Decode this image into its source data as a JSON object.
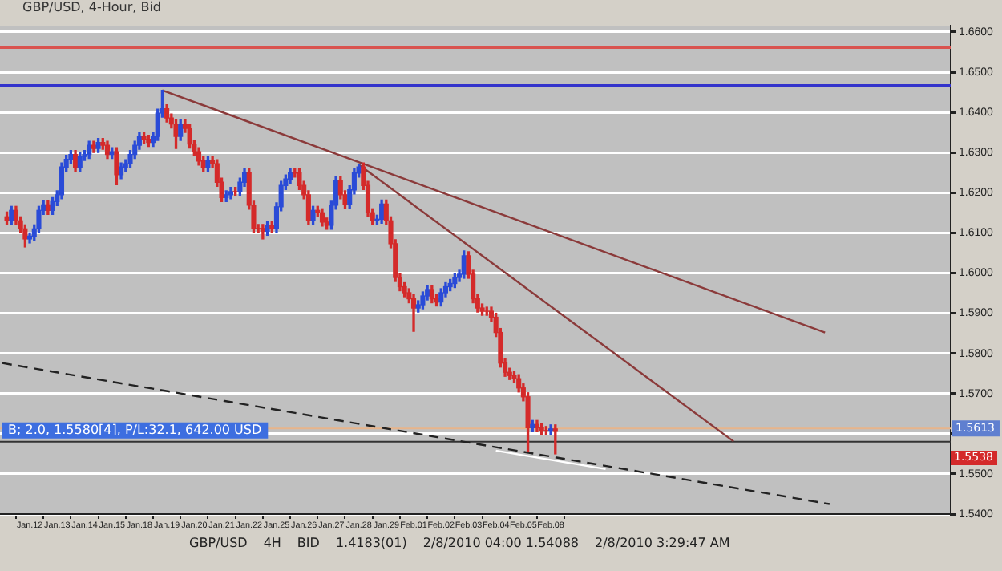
{
  "chart_data": {
    "type": "candlestick",
    "title": "GBP/USD, 4-Hour, Bid",
    "categories": [
      null,
      null,
      null,
      null,
      null,
      null,
      "Jan.12",
      null,
      null,
      null,
      null,
      null,
      "Jan.13",
      null,
      null,
      null,
      null,
      null,
      "Jan.14",
      null,
      null,
      null,
      null,
      null,
      "Jan.15",
      null,
      null,
      null,
      null,
      null,
      "Jan.18",
      null,
      null,
      null,
      null,
      null,
      "Jan.19",
      null,
      null,
      null,
      null,
      null,
      "Jan.20",
      null,
      null,
      null,
      null,
      null,
      "Jan.21",
      null,
      null,
      null,
      null,
      null,
      "Jan.22",
      null,
      null,
      null,
      null,
      null,
      "Jan.25",
      null,
      null,
      null,
      null,
      null,
      "Jan.26",
      null,
      null,
      null,
      null,
      null,
      "Jan.27",
      null,
      null,
      null,
      null,
      null,
      "Jan.28",
      null,
      null,
      null,
      null,
      null,
      "Jan.29",
      null,
      null,
      null,
      null,
      null,
      "Feb.01",
      null,
      null,
      null,
      null,
      null,
      "Feb.02",
      null,
      null,
      null,
      null,
      null,
      "Feb.03",
      null,
      null,
      null,
      null,
      null,
      "Feb.04",
      null,
      null,
      null,
      null,
      null,
      "Feb.05",
      null,
      null,
      null,
      null,
      null,
      "Feb.08",
      null,
      null,
      null,
      null,
      null,
      null,
      null,
      null,
      null,
      null,
      null,
      null,
      null,
      null,
      null,
      null,
      null,
      null,
      null,
      null,
      null,
      null,
      null,
      null,
      null,
      null,
      null,
      null,
      null,
      null,
      null,
      null,
      null,
      null,
      null,
      null,
      null,
      null,
      null,
      null,
      null,
      null,
      null,
      null,
      null,
      null,
      null,
      null,
      null,
      null,
      null,
      null,
      null,
      null,
      null,
      null,
      null,
      null,
      null,
      null,
      null,
      null,
      null,
      null,
      null,
      null,
      null,
      null,
      null,
      null,
      null,
      null,
      null,
      null,
      null,
      null,
      null,
      null,
      null,
      null,
      null,
      null,
      null,
      null,
      null,
      null,
      null
    ],
    "ohlc": [
      null,
      [
        1.614,
        1.6152,
        1.612,
        1.613
      ],
      [
        1.613,
        1.6166,
        1.612,
        1.6156
      ],
      [
        1.6156,
        1.6166,
        1.612,
        1.613
      ],
      [
        1.613,
        1.614,
        1.61,
        1.611
      ],
      [
        1.611,
        1.612,
        1.6065,
        1.6085
      ],
      [
        1.6085,
        1.61,
        1.6075,
        1.6092
      ],
      [
        1.6092,
        1.612,
        1.6082,
        1.611
      ],
      [
        1.611,
        1.6166,
        1.61,
        1.6156
      ],
      [
        1.6156,
        1.618,
        1.6146,
        1.617
      ],
      [
        1.617,
        1.618,
        1.6146,
        1.6156
      ],
      [
        1.6156,
        1.6188,
        1.6146,
        1.6178
      ],
      [
        1.6178,
        1.6205,
        1.6168,
        1.6195
      ],
      [
        1.6195,
        1.6274,
        1.6185,
        1.6264
      ],
      [
        1.6264,
        1.6293,
        1.6254,
        1.6283
      ],
      [
        1.6283,
        1.6305,
        1.6273,
        1.6295
      ],
      [
        1.6295,
        1.6305,
        1.6254,
        1.6264
      ],
      [
        1.6264,
        1.63,
        1.6254,
        1.629
      ],
      [
        1.629,
        1.6305,
        1.628,
        1.6295
      ],
      [
        1.6295,
        1.6328,
        1.6285,
        1.6318
      ],
      [
        1.6318,
        1.6328,
        1.63,
        1.631
      ],
      [
        1.631,
        1.6335,
        1.63,
        1.6325
      ],
      [
        1.6325,
        1.6335,
        1.6308,
        1.6318
      ],
      [
        1.6318,
        1.6328,
        1.6285,
        1.6295
      ],
      [
        1.6295,
        1.6312,
        1.6285,
        1.6302
      ],
      [
        1.6302,
        1.6312,
        1.622,
        1.6245
      ],
      [
        1.6245,
        1.6274,
        1.6235,
        1.6264
      ],
      [
        1.6264,
        1.6282,
        1.6254,
        1.6272
      ],
      [
        1.6272,
        1.6305,
        1.6262,
        1.6295
      ],
      [
        1.6295,
        1.6328,
        1.6285,
        1.6318
      ],
      [
        1.6318,
        1.635,
        1.6308,
        1.634
      ],
      [
        1.634,
        1.635,
        1.6323,
        1.6333
      ],
      [
        1.6333,
        1.6343,
        1.6315,
        1.6325
      ],
      [
        1.6325,
        1.635,
        1.6315,
        1.634
      ],
      [
        1.634,
        1.6408,
        1.633,
        1.6398
      ],
      [
        1.6398,
        1.6455,
        1.6388,
        1.6409
      ],
      [
        1.6409,
        1.6419,
        1.6376,
        1.6386
      ],
      [
        1.6386,
        1.6396,
        1.6361,
        1.6371
      ],
      [
        1.6371,
        1.6381,
        1.631,
        1.634
      ],
      [
        1.634,
        1.6381,
        1.633,
        1.6371
      ],
      [
        1.6371,
        1.6381,
        1.635,
        1.636
      ],
      [
        1.636,
        1.637,
        1.6311,
        1.6321
      ],
      [
        1.6321,
        1.6331,
        1.6292,
        1.6302
      ],
      [
        1.6302,
        1.6312,
        1.6269,
        1.6279
      ],
      [
        1.6279,
        1.6289,
        1.6254,
        1.6264
      ],
      [
        1.6264,
        1.6289,
        1.6254,
        1.6279
      ],
      [
        1.6279,
        1.6289,
        1.6262,
        1.6272
      ],
      [
        1.6272,
        1.6282,
        1.6216,
        1.6226
      ],
      [
        1.6226,
        1.6236,
        1.6178,
        1.6188
      ],
      [
        1.6188,
        1.6205,
        1.6178,
        1.6195
      ],
      [
        1.6195,
        1.6213,
        1.6185,
        1.6203
      ],
      [
        1.6203,
        1.6213,
        1.6193,
        1.6203
      ],
      [
        1.6203,
        1.6236,
        1.6193,
        1.6226
      ],
      [
        1.6226,
        1.6259,
        1.6216,
        1.6249
      ],
      [
        1.6249,
        1.6259,
        1.6159,
        1.6169
      ],
      [
        1.6169,
        1.6179,
        1.6101,
        1.6111
      ],
      [
        1.6111,
        1.6121,
        1.6101,
        1.6111
      ],
      [
        1.6111,
        1.6121,
        1.6085,
        1.6104
      ],
      [
        1.6104,
        1.6129,
        1.6094,
        1.6119
      ],
      [
        1.6119,
        1.6129,
        1.6101,
        1.6111
      ],
      [
        1.6111,
        1.6175,
        1.6101,
        1.6165
      ],
      [
        1.6165,
        1.6228,
        1.6155,
        1.6218
      ],
      [
        1.6218,
        1.6244,
        1.6208,
        1.6234
      ],
      [
        1.6234,
        1.6259,
        1.6224,
        1.6249
      ],
      [
        1.6249,
        1.6259,
        1.6239,
        1.6249
      ],
      [
        1.6249,
        1.6259,
        1.6208,
        1.6218
      ],
      [
        1.6218,
        1.6228,
        1.6185,
        1.6195
      ],
      [
        1.6195,
        1.6205,
        1.612,
        1.613
      ],
      [
        1.613,
        1.6166,
        1.612,
        1.6156
      ],
      [
        1.6156,
        1.6166,
        1.614,
        1.615
      ],
      [
        1.615,
        1.616,
        1.6117,
        1.6127
      ],
      [
        1.6127,
        1.6137,
        1.6109,
        1.6119
      ],
      [
        1.6119,
        1.6179,
        1.6109,
        1.6169
      ],
      [
        1.6169,
        1.624,
        1.6159,
        1.623
      ],
      [
        1.623,
        1.624,
        1.6185,
        1.6195
      ],
      [
        1.6195,
        1.6205,
        1.616,
        1.617
      ],
      [
        1.617,
        1.6217,
        1.616,
        1.6207
      ],
      [
        1.6207,
        1.6259,
        1.6197,
        1.6249
      ],
      [
        1.6249,
        1.627,
        1.6239,
        1.6264
      ],
      [
        1.6264,
        1.6274,
        1.6208,
        1.6218
      ],
      [
        1.6218,
        1.6228,
        1.614,
        1.615
      ],
      [
        1.615,
        1.616,
        1.612,
        1.613
      ],
      [
        1.613,
        1.6144,
        1.612,
        1.6134
      ],
      [
        1.6134,
        1.6182,
        1.6124,
        1.6172
      ],
      [
        1.6172,
        1.6182,
        1.612,
        1.613
      ],
      [
        1.613,
        1.614,
        1.6063,
        1.6073
      ],
      [
        1.6073,
        1.6083,
        1.5979,
        1.5989
      ],
      [
        1.5989,
        1.5999,
        1.5956,
        1.5966
      ],
      [
        1.5966,
        1.5976,
        1.5941,
        1.5951
      ],
      [
        1.5951,
        1.5961,
        1.5926,
        1.5936
      ],
      [
        1.5936,
        1.5946,
        1.5855,
        1.5913
      ],
      [
        1.5913,
        1.5931,
        1.5903,
        1.5921
      ],
      [
        1.5921,
        1.5953,
        1.5911,
        1.5943
      ],
      [
        1.5943,
        1.5969,
        1.5933,
        1.5959
      ],
      [
        1.5959,
        1.5969,
        1.5926,
        1.5936
      ],
      [
        1.5936,
        1.5946,
        1.5918,
        1.5928
      ],
      [
        1.5928,
        1.5961,
        1.5918,
        1.5951
      ],
      [
        1.5951,
        1.5976,
        1.5941,
        1.5966
      ],
      [
        1.5966,
        1.5984,
        1.5956,
        1.5974
      ],
      [
        1.5974,
        1.5999,
        1.5964,
        1.5989
      ],
      [
        1.5989,
        1.6007,
        1.5979,
        1.5997
      ],
      [
        1.5997,
        1.6055,
        1.5987,
        1.6043
      ],
      [
        1.6043,
        1.6053,
        1.5987,
        1.5997
      ],
      [
        1.5997,
        1.6007,
        1.5926,
        1.5936
      ],
      [
        1.5936,
        1.5946,
        1.5903,
        1.5913
      ],
      [
        1.5913,
        1.5923,
        1.5895,
        1.5905
      ],
      [
        1.5905,
        1.5915,
        1.5895,
        1.5905
      ],
      [
        1.5905,
        1.5915,
        1.588,
        1.589
      ],
      [
        1.589,
        1.59,
        1.5842,
        1.5852
      ],
      [
        1.5852,
        1.5862,
        1.5766,
        1.5776
      ],
      [
        1.5776,
        1.5786,
        1.5743,
        1.5753
      ],
      [
        1.5753,
        1.5763,
        1.5735,
        1.5745
      ],
      [
        1.5745,
        1.5755,
        1.5727,
        1.5737
      ],
      [
        1.5737,
        1.5747,
        1.5704,
        1.5714
      ],
      [
        1.5714,
        1.5724,
        1.5682,
        1.5692
      ],
      [
        1.5692,
        1.5702,
        1.5555,
        1.5615
      ],
      [
        1.5615,
        1.5633,
        1.5605,
        1.5623
      ],
      [
        1.5623,
        1.5633,
        1.5605,
        1.5615
      ],
      [
        1.5615,
        1.5625,
        1.5598,
        1.5608
      ],
      [
        1.5608,
        1.5618,
        1.5598,
        1.5608
      ],
      [
        1.5608,
        1.5622,
        1.5598,
        1.5612
      ],
      [
        1.5612,
        1.5622,
        1.555,
        1.5606
      ],
      null,
      null,
      null,
      null,
      null,
      null,
      null,
      null,
      null,
      null,
      null,
      null,
      null,
      null,
      null,
      null,
      null,
      null,
      null,
      null,
      null,
      null,
      null,
      null,
      null,
      null,
      null,
      null,
      null,
      null,
      null,
      null,
      null,
      null,
      null,
      null,
      null,
      null,
      null,
      null,
      null,
      null,
      null,
      null,
      null,
      null,
      null,
      null,
      null,
      null,
      null,
      null,
      null,
      null,
      null,
      null,
      null,
      null,
      null,
      null,
      null,
      null,
      null,
      null,
      null,
      null,
      null,
      null,
      null,
      null,
      null,
      null,
      null,
      null,
      null,
      null,
      null,
      null,
      null,
      null,
      null,
      null,
      null,
      null,
      null,
      null
    ],
    "colors": [
      null,
      "#d42a2a",
      "#2a4bd7",
      "#d42a2a",
      "#d42a2a",
      "#d42a2a",
      "#2a4bd7",
      "#2a4bd7",
      "#2a4bd7",
      "#2a4bd7",
      "#d42a2a",
      "#2a4bd7",
      "#2a4bd7",
      "#2a4bd7",
      "#2a4bd7",
      "#2a4bd7",
      "#d42a2a",
      "#2a4bd7",
      "#2a4bd7",
      "#2a4bd7",
      "#d42a2a",
      "#2a4bd7",
      "#d42a2a",
      "#d42a2a",
      "#2a4bd7",
      "#d42a2a",
      "#2a4bd7",
      "#2a4bd7",
      "#2a4bd7",
      "#2a4bd7",
      "#2a4bd7",
      "#d42a2a",
      "#d42a2a",
      "#2a4bd7",
      "#2a4bd7",
      "#2a4bd7",
      "#d42a2a",
      "#d42a2a",
      "#d42a2a",
      "#2a4bd7",
      "#d42a2a",
      "#d42a2a",
      "#d42a2a",
      "#d42a2a",
      "#d42a2a",
      "#2a4bd7",
      "#d42a2a",
      "#d42a2a",
      "#d42a2a",
      "#2a4bd7",
      "#2a4bd7",
      "#d42a2a",
      "#2a4bd7",
      "#2a4bd7",
      "#d42a2a",
      "#d42a2a",
      "#d42a2a",
      "#d42a2a",
      "#2a4bd7",
      "#d42a2a",
      "#2a4bd7",
      "#2a4bd7",
      "#2a4bd7",
      "#2a4bd7",
      "#d42a2a",
      "#d42a2a",
      "#d42a2a",
      "#d42a2a",
      "#2a4bd7",
      "#d42a2a",
      "#d42a2a",
      "#d42a2a",
      "#2a4bd7",
      "#2a4bd7",
      "#d42a2a",
      "#d42a2a",
      "#2a4bd7",
      "#2a4bd7",
      "#2a4bd7",
      "#d42a2a",
      "#d42a2a",
      "#d42a2a",
      "#2a4bd7",
      "#2a4bd7",
      "#d42a2a",
      "#d42a2a",
      "#d42a2a",
      "#d42a2a",
      "#d42a2a",
      "#d42a2a",
      "#d42a2a",
      "#2a4bd7",
      "#2a4bd7",
      "#2a4bd7",
      "#d42a2a",
      "#d42a2a",
      "#2a4bd7",
      "#2a4bd7",
      "#2a4bd7",
      "#2a4bd7",
      "#2a4bd7",
      "#2a4bd7",
      "#d42a2a",
      "#d42a2a",
      "#d42a2a",
      "#d42a2a",
      "#d42a2a",
      "#d42a2a",
      "#d42a2a",
      "#d42a2a",
      "#d42a2a",
      "#d42a2a",
      "#d42a2a",
      "#d42a2a",
      "#d42a2a",
      "#d42a2a",
      "#2a4bd7",
      "#d42a2a",
      "#d42a2a",
      "#d42a2a",
      "#2a4bd7",
      "#d42a2a",
      null,
      null,
      null,
      null,
      null,
      null,
      null,
      null,
      null,
      null,
      null,
      null,
      null,
      null,
      null,
      null,
      null,
      null,
      null,
      null,
      null,
      null,
      null,
      null,
      null,
      null,
      null,
      null,
      null,
      null,
      null,
      null,
      null,
      null,
      null,
      null,
      null,
      null,
      null,
      null,
      null,
      null,
      null,
      null,
      null,
      null,
      null,
      null,
      null,
      null,
      null,
      null,
      null,
      null,
      null,
      null,
      null,
      null,
      null,
      null,
      null,
      null,
      null,
      null,
      null,
      null,
      null,
      null,
      null,
      null,
      null,
      null,
      null,
      null,
      null,
      null,
      null,
      null,
      null,
      null,
      null,
      null,
      null,
      null,
      null,
      null
    ],
    "series": [
      {
        "type": "line",
        "color": "#8b3a3a",
        "values": [
          null,
          null,
          null,
          null,
          null,
          null,
          null,
          null,
          null,
          null,
          null,
          null,
          null,
          null,
          null,
          null,
          null,
          null,
          null,
          null,
          null,
          null,
          null,
          null,
          null,
          null,
          null,
          null,
          null,
          null,
          null,
          null,
          null,
          null,
          null,
          1.6455,
          null,
          null,
          null,
          null,
          null,
          null,
          null,
          null,
          null,
          null,
          null,
          null,
          null,
          null,
          null,
          null,
          null,
          null,
          null,
          null,
          null,
          null,
          null,
          null,
          null,
          null,
          null,
          null,
          null,
          null,
          null,
          null,
          null,
          null,
          null,
          null,
          null,
          null,
          null,
          null,
          null,
          null,
          null,
          null,
          null,
          null,
          null,
          null,
          null,
          null,
          null,
          null,
          null,
          null,
          null,
          null,
          null,
          null,
          null,
          null,
          null,
          null,
          null,
          null,
          null,
          null,
          null,
          null,
          null,
          null,
          null,
          null,
          null,
          null,
          null,
          null,
          null,
          null,
          null,
          null,
          null,
          null,
          null,
          null,
          null,
          null,
          null,
          null,
          null,
          null,
          null,
          null,
          null,
          null,
          null,
          null,
          null,
          null,
          null,
          null,
          null,
          null,
          null,
          null,
          null,
          null,
          null,
          null,
          null,
          null,
          null,
          null,
          null,
          null,
          null,
          null,
          null,
          null,
          null,
          null,
          null,
          null,
          null,
          null,
          null,
          null,
          null,
          null,
          null,
          null,
          null,
          null,
          null,
          null,
          null,
          null,
          null,
          null,
          null,
          null,
          null,
          null,
          null,
          null,
          1.5852,
          null,
          null,
          null,
          null,
          null,
          null,
          null,
          null,
          null,
          null,
          null,
          null,
          null,
          null,
          null,
          null,
          null,
          null,
          null,
          null,
          null,
          null,
          null,
          null,
          null,
          null,
          null
        ]
      },
      {
        "type": "line",
        "color": "#8b3a3a",
        "values": [
          null,
          null,
          null,
          null,
          null,
          null,
          null,
          null,
          null,
          null,
          null,
          null,
          null,
          null,
          null,
          null,
          null,
          null,
          null,
          null,
          null,
          null,
          null,
          null,
          null,
          null,
          null,
          null,
          null,
          null,
          null,
          null,
          null,
          null,
          null,
          null,
          null,
          null,
          null,
          null,
          null,
          null,
          null,
          null,
          null,
          null,
          null,
          null,
          null,
          null,
          null,
          null,
          null,
          null,
          null,
          null,
          null,
          null,
          null,
          null,
          null,
          null,
          null,
          null,
          null,
          null,
          null,
          null,
          null,
          null,
          null,
          null,
          null,
          null,
          null,
          null,
          null,
          null,
          1.627,
          null,
          null,
          null,
          null,
          null,
          null,
          null,
          null,
          null,
          null,
          null,
          null,
          null,
          null,
          null,
          null,
          null,
          null,
          null,
          null,
          null,
          null,
          null,
          null,
          null,
          null,
          null,
          null,
          null,
          null,
          null,
          null,
          null,
          null,
          null,
          null,
          null,
          null,
          null,
          null,
          null,
          null,
          null,
          null,
          null,
          null,
          null,
          null,
          null,
          null,
          null,
          null,
          null,
          null,
          null,
          null,
          null,
          null,
          null,
          null,
          null,
          null,
          null,
          null,
          null,
          null,
          null,
          null,
          null,
          null,
          null,
          null,
          null,
          null,
          null,
          null,
          null,
          null,
          null,
          null,
          null,
          1.5581,
          null,
          null,
          null,
          null,
          null,
          null,
          null,
          null,
          null,
          null,
          null,
          null,
          null,
          null,
          null,
          null,
          null,
          null,
          null,
          null,
          null,
          null,
          null,
          null,
          null,
          null,
          null,
          null,
          null,
          null,
          null,
          null,
          null,
          null,
          null,
          null,
          null,
          null,
          null,
          null,
          null,
          null,
          null,
          null,
          null,
          null,
          null
        ]
      },
      {
        "type": "line",
        "color": "#222222",
        "line_style": "dashed",
        "values": [
          1.5776,
          null,
          null,
          null,
          null,
          null,
          null,
          null,
          null,
          null,
          null,
          null,
          null,
          null,
          null,
          null,
          null,
          null,
          null,
          null,
          null,
          null,
          null,
          null,
          null,
          null,
          null,
          null,
          null,
          null,
          null,
          null,
          null,
          null,
          null,
          null,
          null,
          null,
          null,
          null,
          null,
          null,
          null,
          null,
          null,
          null,
          null,
          null,
          null,
          null,
          null,
          null,
          null,
          null,
          null,
          null,
          null,
          null,
          null,
          null,
          null,
          null,
          null,
          null,
          null,
          null,
          null,
          null,
          null,
          null,
          null,
          null,
          null,
          null,
          null,
          null,
          null,
          null,
          null,
          null,
          null,
          null,
          null,
          null,
          null,
          null,
          null,
          null,
          null,
          null,
          null,
          null,
          null,
          null,
          null,
          null,
          null,
          null,
          null,
          null,
          null,
          null,
          null,
          null,
          null,
          null,
          null,
          null,
          null,
          null,
          null,
          null,
          null,
          null,
          null,
          null,
          null,
          null,
          null,
          null,
          null,
          null,
          null,
          null,
          null,
          null,
          null,
          null,
          null,
          null,
          null,
          null,
          null,
          null,
          null,
          null,
          null,
          null,
          null,
          null,
          null,
          null,
          null,
          null,
          null,
          null,
          null,
          null,
          null,
          null,
          null,
          null,
          null,
          null,
          null,
          null,
          null,
          null,
          null,
          null,
          null,
          null,
          null,
          null,
          null,
          null,
          null,
          null,
          null,
          null,
          null,
          null,
          null,
          null,
          null,
          null,
          null,
          null,
          null,
          null,
          null,
          1.5425,
          null,
          null,
          null,
          null,
          null,
          null,
          null,
          null,
          null,
          null,
          null,
          null,
          null,
          null,
          null,
          null,
          null,
          null,
          null,
          null,
          null,
          null,
          null,
          null,
          null,
          null
        ]
      },
      {
        "type": "line",
        "color": "#ffffff",
        "values": [
          null,
          null,
          null,
          null,
          null,
          null,
          null,
          null,
          null,
          null,
          null,
          null,
          null,
          null,
          null,
          null,
          null,
          null,
          null,
          null,
          null,
          null,
          null,
          null,
          null,
          null,
          null,
          null,
          null,
          null,
          null,
          null,
          null,
          null,
          null,
          null,
          null,
          null,
          null,
          null,
          null,
          null,
          null,
          null,
          null,
          null,
          null,
          null,
          null,
          null,
          null,
          null,
          null,
          null,
          null,
          null,
          null,
          null,
          null,
          null,
          null,
          null,
          null,
          null,
          null,
          null,
          null,
          null,
          null,
          null,
          null,
          null,
          null,
          null,
          null,
          null,
          null,
          null,
          null,
          null,
          null,
          null,
          null,
          null,
          null,
          null,
          null,
          null,
          null,
          null,
          null,
          null,
          null,
          null,
          null,
          null,
          null,
          null,
          null,
          null,
          null,
          null,
          null,
          null,
          null,
          null,
          null,
          null,
          1.5558,
          null,
          null,
          null,
          null,
          null,
          null,
          null,
          null,
          null,
          null,
          null,
          null,
          null,
          null,
          null,
          null,
          null,
          null,
          null,
          null,
          null,
          null,
          null,
          1.5512,
          null,
          null,
          null,
          null,
          null,
          null,
          null,
          null,
          null,
          null,
          null,
          null,
          null,
          null,
          null,
          null,
          null,
          null,
          null,
          null,
          null,
          null,
          null,
          null,
          null,
          null,
          null,
          null,
          null,
          null,
          null,
          null,
          null,
          null,
          null,
          null,
          null,
          null,
          null,
          null,
          null,
          null,
          null,
          null,
          null,
          null,
          null,
          null,
          null,
          null,
          null,
          null,
          null,
          null,
          null,
          null,
          null,
          null,
          null,
          null,
          null,
          null,
          null,
          null,
          null,
          null,
          null,
          null,
          null,
          null,
          null,
          null,
          null,
          null,
          null
        ]
      }
    ],
    "ylim": [
      1.54,
      1.6615
    ],
    "yticks": [
      {
        "value": 1.54,
        "label": "1.5400"
      },
      {
        "value": 1.55,
        "label": "1.5500"
      },
      {
        "value": 1.56,
        "label": null
      },
      {
        "value": 1.57,
        "label": "1.5700"
      },
      {
        "value": 1.58,
        "label": "1.5800"
      },
      {
        "value": 1.59,
        "label": "1.5900"
      },
      {
        "value": 1.6,
        "label": "1.6000"
      },
      {
        "value": 1.61,
        "label": "1.6100"
      },
      {
        "value": 1.62,
        "label": "1.6200"
      },
      {
        "value": 1.63,
        "label": "1.6300"
      },
      {
        "value": 1.64,
        "label": "1.6400"
      },
      {
        "value": 1.65,
        "label": "1.6500"
      },
      {
        "value": 1.66,
        "label": "1.6600"
      }
    ],
    "ref_lines": [
      {
        "axis": "y",
        "value": 1.6562,
        "color": "#d9534f"
      },
      {
        "axis": "y",
        "value": 1.6466,
        "color": "#3333cc"
      },
      {
        "axis": "y",
        "value": 1.5613,
        "color": "#e8b48a",
        "label": "1.5613"
      },
      {
        "axis": "y",
        "value": 1.558,
        "color": "#333333",
        "label": "B; 2.0, 1.5580[4], P/L:32.1, 642.00 USD"
      }
    ],
    "annotations": [
      "1.5538",
      "GBP/USD",
      "4H",
      "BID",
      "1.4183(01)",
      "2/8/2010 04:00  1.54088",
      "2/8/2010 3:29:47 AM"
    ],
    "grid": "y",
    "legend": false
  }
}
